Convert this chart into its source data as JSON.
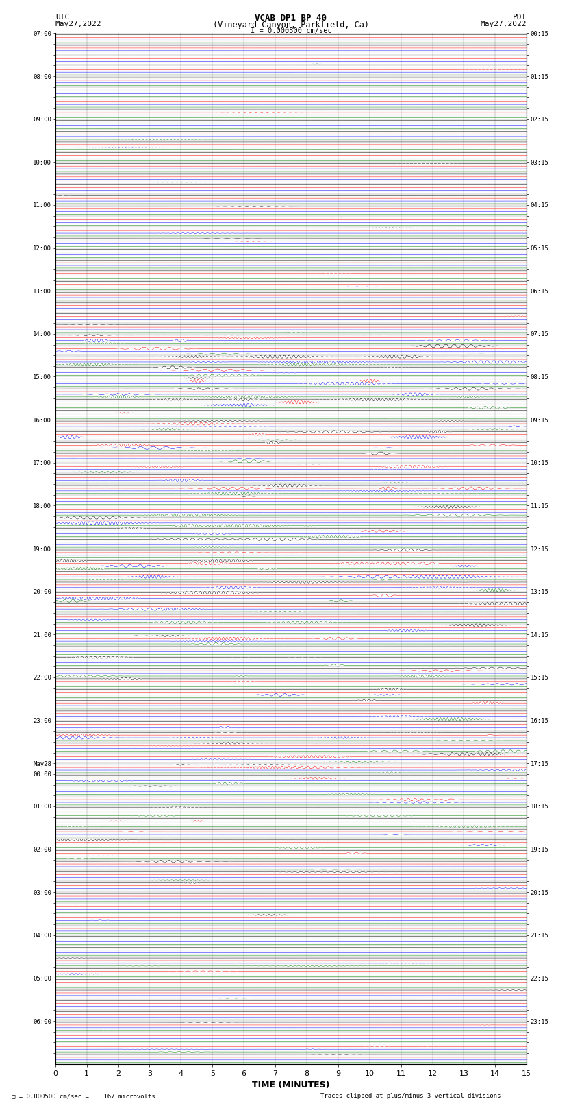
{
  "title_line1": "VCAB DP1 BP 40",
  "title_line2": "(Vineyard Canyon, Parkfield, Ca)",
  "scale_label": "I = 0.000500 cm/sec",
  "left_header": "UTC",
  "right_header": "PDT",
  "left_date": "May27,2022",
  "right_date": "May27,2022",
  "xlabel": "TIME (MINUTES)",
  "footer_left": "= 0.000500 cm/sec =    167 microvolts",
  "footer_right": "Traces clipped at plus/minus 3 vertical divisions",
  "time_min": 0,
  "time_max": 15,
  "xticks": [
    0,
    1,
    2,
    3,
    4,
    5,
    6,
    7,
    8,
    9,
    10,
    11,
    12,
    13,
    14,
    15
  ],
  "background_color": "#ffffff",
  "trace_colors": [
    "black",
    "red",
    "blue",
    "green"
  ],
  "utc_labels": [
    "07:00",
    "",
    "",
    "",
    "08:00",
    "",
    "",
    "",
    "09:00",
    "",
    "",
    "",
    "10:00",
    "",
    "",
    "",
    "11:00",
    "",
    "",
    "",
    "12:00",
    "",
    "",
    "",
    "13:00",
    "",
    "",
    "",
    "14:00",
    "",
    "",
    "",
    "15:00",
    "",
    "",
    "",
    "16:00",
    "",
    "",
    "",
    "17:00",
    "",
    "",
    "",
    "18:00",
    "",
    "",
    "",
    "19:00",
    "",
    "",
    "",
    "20:00",
    "",
    "",
    "",
    "21:00",
    "",
    "",
    "",
    "22:00",
    "",
    "",
    "",
    "23:00",
    "",
    "",
    "",
    "May28",
    "00:00",
    "",
    "",
    "01:00",
    "",
    "",
    "",
    "02:00",
    "",
    "",
    "",
    "03:00",
    "",
    "",
    "",
    "04:00",
    "",
    "",
    "",
    "05:00",
    "",
    "",
    "",
    "06:00",
    "",
    "",
    ""
  ],
  "pdt_labels": [
    "00:15",
    "",
    "",
    "",
    "01:15",
    "",
    "",
    "",
    "02:15",
    "",
    "",
    "",
    "03:15",
    "",
    "",
    "",
    "04:15",
    "",
    "",
    "",
    "05:15",
    "",
    "",
    "",
    "06:15",
    "",
    "",
    "",
    "07:15",
    "",
    "",
    "",
    "08:15",
    "",
    "",
    "",
    "09:15",
    "",
    "",
    "",
    "10:15",
    "",
    "",
    "",
    "11:15",
    "",
    "",
    "",
    "12:15",
    "",
    "",
    "",
    "13:15",
    "",
    "",
    "",
    "14:15",
    "",
    "",
    "",
    "15:15",
    "",
    "",
    "",
    "16:15",
    "",
    "",
    "",
    "17:15",
    "",
    "",
    "",
    "18:15",
    "",
    "",
    "",
    "19:15",
    "",
    "",
    "",
    "20:15",
    "",
    "",
    "",
    "21:15",
    "",
    "",
    "",
    "22:15",
    "",
    "",
    "",
    "23:15",
    "",
    "",
    ""
  ],
  "n_rows": 96,
  "traces_per_row": 4,
  "seed": 42,
  "n_pts": 1800,
  "linewidth": 0.35
}
